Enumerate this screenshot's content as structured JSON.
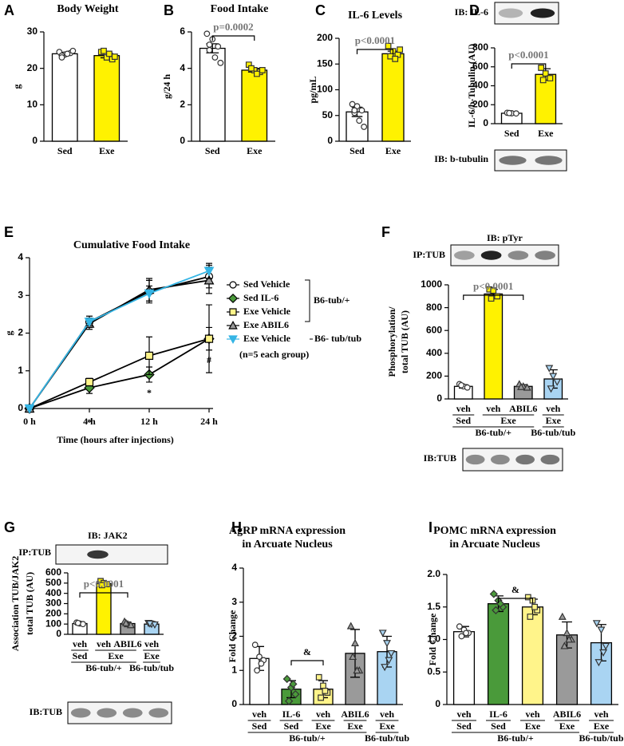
{
  "chart_data": [
    {
      "type": "bar",
      "panel": "A",
      "title": "Body Weight",
      "ylabel": "g",
      "ylim": [
        0,
        30
      ],
      "yticks": [
        0,
        10,
        20,
        30
      ],
      "categories": [
        "Sed",
        "Exe"
      ],
      "values": [
        24,
        23.5
      ],
      "errors": [
        0.4,
        0.6
      ],
      "colors": [
        "#ffffff",
        "#fff200"
      ],
      "markers": [
        "circle",
        "square"
      ],
      "points": [
        [
          24.5,
          23.8,
          24.2,
          23.5,
          24.0,
          24.8,
          23.0
        ],
        [
          24.5,
          23.0,
          22.5,
          24.8,
          24.0,
          23.2
        ]
      ]
    },
    {
      "type": "bar",
      "panel": "B",
      "title": "Food Intake",
      "ylabel": "g/24 h",
      "ylim": [
        0,
        6
      ],
      "yticks": [
        0,
        2,
        4,
        6
      ],
      "categories": [
        "Sed",
        "Exe"
      ],
      "values": [
        5.1,
        3.9
      ],
      "errors": [
        0.25,
        0.1
      ],
      "colors": [
        "#ffffff",
        "#fff200"
      ],
      "markers": [
        "circle",
        "square"
      ],
      "points": [
        [
          5.9,
          5.6,
          5.2,
          5.0,
          4.6,
          4.3,
          5.3
        ],
        [
          4.2,
          3.9,
          3.8,
          4.0,
          3.7,
          3.9
        ]
      ],
      "annotation": "p=0.0002"
    },
    {
      "type": "bar",
      "panel": "C",
      "title": "IL-6 Levels",
      "ylabel": "pg/mL",
      "ylim": [
        0,
        200
      ],
      "yticks": [
        0,
        50,
        100,
        150,
        200
      ],
      "categories": [
        "Sed",
        "Exe"
      ],
      "values": [
        57,
        170
      ],
      "errors": [
        9,
        5
      ],
      "colors": [
        "#ffffff",
        "#fff200"
      ],
      "markers": [
        "circle",
        "square"
      ],
      "points": [
        [
          72,
          68,
          60,
          55,
          40,
          28,
          60
        ],
        [
          185,
          175,
          168,
          165,
          160,
          178
        ]
      ],
      "annotation": "p<0.0001"
    },
    {
      "type": "bar",
      "panel": "D",
      "ylabel": "IL-6/b-Tubulin (AU)",
      "ylim": [
        0,
        800
      ],
      "yticks": [
        0,
        200,
        400,
        600,
        800
      ],
      "categories": [
        "Sed",
        "Exe"
      ],
      "values": [
        110,
        520
      ],
      "errors": [
        5,
        60
      ],
      "colors": [
        "#ffffff",
        "#fff200"
      ],
      "markers": [
        "circle",
        "square"
      ],
      "points": [
        [
          115,
          110,
          108,
          112
        ],
        [
          590,
          530,
          480,
          460
        ]
      ],
      "annotation": "p<0.0001",
      "blot_labels": [
        "IB: IL-6",
        "IB: b-tubulin"
      ]
    },
    {
      "type": "line",
      "panel": "E",
      "title": "Cumulative Food Intake",
      "xlabel": "Time (hours after injections)",
      "ylabel": "g",
      "categories": [
        "0 h",
        "4 h",
        "12 h",
        "24 h"
      ],
      "ylim": [
        0,
        4
      ],
      "yticks": [
        0,
        1,
        2,
        3,
        4
      ],
      "series": [
        {
          "name": "Sed Vehicle",
          "color": "#ffffff",
          "line": "#000000",
          "marker": "circle",
          "values": [
            0,
            2.3,
            3.1,
            3.5
          ],
          "errors": [
            0,
            0.15,
            0.3,
            0.3
          ]
        },
        {
          "name": "Sed IL-6",
          "color": "#4a9a3a",
          "line": "#000000",
          "marker": "diamond",
          "values": [
            0,
            0.55,
            0.9,
            1.85
          ],
          "errors": [
            0,
            0.15,
            0.2,
            0.3
          ]
        },
        {
          "name": "Exe Vehicle",
          "color": "#fff48a",
          "line": "#000000",
          "marker": "square",
          "values": [
            0,
            0.7,
            1.4,
            1.85
          ],
          "errors": [
            0,
            0.1,
            0.5,
            0.9
          ]
        },
        {
          "name": "Exe ABIL6",
          "color": "#9a9a9a",
          "line": "#000000",
          "marker": "triangle",
          "values": [
            0,
            2.25,
            3.15,
            3.4
          ],
          "errors": [
            0,
            0.15,
            0.3,
            0.35
          ]
        },
        {
          "name": "Exe Vehicle",
          "color": "#35b5e5",
          "line": "#35b5e5",
          "marker": "triangle-down",
          "values": [
            0,
            2.3,
            3.05,
            3.65
          ],
          "errors": [
            0,
            0.1,
            0.2,
            0.2
          ]
        }
      ],
      "legend_groups": [
        "B6-tub/+",
        "B6- tub/tub"
      ],
      "note": "(n=5 each group)",
      "annotations": [
        "*",
        "*",
        "#"
      ]
    },
    {
      "type": "bar",
      "panel": "F",
      "ylabel": [
        "Phosphorylation/",
        "total TUB (AU)"
      ],
      "ylim": [
        0,
        1000
      ],
      "yticks": [
        0,
        200,
        400,
        600,
        800,
        1000
      ],
      "categories": [
        "veh",
        "veh",
        "ABIL6",
        "veh"
      ],
      "conditions": [
        "Sed",
        "Exe",
        null,
        "Exe"
      ],
      "strains": [
        "B6-tub/+",
        null,
        null,
        "B6-tub/tub"
      ],
      "values": [
        110,
        920,
        110,
        175
      ],
      "errors": [
        15,
        40,
        15,
        80
      ],
      "colors": [
        "#ffffff",
        "#fff200",
        "#9a9a9a",
        "#a9d4f2"
      ],
      "markers": [
        "circle",
        "square",
        "triangle",
        "triangle-down"
      ],
      "points": [
        [
          130,
          110,
          100,
          120
        ],
        [
          960,
          950,
          900,
          880
        ],
        [
          130,
          110,
          100,
          105
        ],
        [
          270,
          200,
          150,
          90
        ]
      ],
      "annotation": "p<0.0001",
      "blot_labels": [
        "IB: pTyr",
        "IP:TUB",
        "IB:TUB"
      ]
    },
    {
      "type": "bar",
      "panel": "G",
      "ylabel": [
        "Association TUB/JAK2",
        "total TUB (AU)"
      ],
      "ylim": [
        0,
        600
      ],
      "yticks": [
        0,
        100,
        200,
        300,
        400,
        500,
        600
      ],
      "categories": [
        "veh",
        "veh",
        "ABIL6",
        "veh"
      ],
      "conditions": [
        "Sed",
        "Exe",
        null,
        "Exe"
      ],
      "strains": [
        "B6-tub/+",
        null,
        null,
        "B6-tub/tub"
      ],
      "values": [
        105,
        495,
        105,
        100
      ],
      "errors": [
        8,
        15,
        15,
        8
      ],
      "colors": [
        "#ffffff",
        "#fff200",
        "#9a9a9a",
        "#a9d4f2"
      ],
      "markers": [
        "circle",
        "square",
        "triangle",
        "triangle-down"
      ],
      "points": [
        [
          115,
          105,
          100,
          110
        ],
        [
          520,
          500,
          490,
          480
        ],
        [
          125,
          100,
          90,
          110
        ],
        [
          110,
          100,
          95,
          105
        ]
      ],
      "annotation": "p<0.0001",
      "blot_labels": [
        "IB: JAK2",
        "IP:TUB",
        "IB:TUB"
      ]
    },
    {
      "type": "bar",
      "panel": "H",
      "title": [
        "AgRP mRNA expression",
        "in Arcuate Nucleus"
      ],
      "ylabel": "Fold Change",
      "ylim": [
        0,
        4
      ],
      "yticks": [
        0,
        1,
        2,
        3,
        4
      ],
      "categories": [
        "veh",
        "IL-6",
        "veh",
        "ABIL6",
        "veh"
      ],
      "conditions": [
        "Sed",
        "Sed",
        "Exe",
        "Exe",
        "Exe"
      ],
      "strains": [
        "B6-tub/+",
        null,
        null,
        null,
        "B6-tub/tub"
      ],
      "values": [
        1.35,
        0.45,
        0.45,
        1.5,
        1.55
      ],
      "errors": [
        0.35,
        0.25,
        0.25,
        0.7,
        0.45
      ],
      "colors": [
        "#ffffff",
        "#4a9a3a",
        "#fff48a",
        "#9a9a9a",
        "#a9d4f2"
      ],
      "markers": [
        "circle",
        "diamond",
        "square",
        "triangle",
        "triangle-down"
      ],
      "points": [
        [
          1.75,
          1.4,
          1.3,
          1.0,
          1.2
        ],
        [
          0.75,
          0.5,
          0.3,
          0.1,
          0.6
        ],
        [
          0.8,
          0.55,
          0.35,
          0.2,
          0.4
        ],
        [
          2.3,
          1.8,
          1.0,
          1.4,
          1.0
        ],
        [
          2.1,
          1.8,
          1.5,
          1.1,
          1.3
        ]
      ],
      "annotation": "&"
    },
    {
      "type": "bar",
      "panel": "I",
      "title": [
        "POMC mRNA expression",
        "in Arcuate Nucleus"
      ],
      "ylabel": "Fold Change",
      "ylim": [
        0,
        2
      ],
      "yticks": [
        0,
        0.5,
        {
          "value": 1,
          "label": "1.0"
        },
        1.5,
        {
          "value": 2,
          "label": "2.0"
        }
      ],
      "categories": [
        "veh",
        "IL-6",
        "veh",
        "ABIL6",
        "veh"
      ],
      "conditions": [
        "Sed",
        "Sed",
        "Exe",
        "Exe",
        "Exe"
      ],
      "strains": [
        "B6-tub/+",
        null,
        null,
        null,
        "B6-tub/tub"
      ],
      "values": [
        1.12,
        1.55,
        1.5,
        1.07,
        0.95
      ],
      "errors": [
        0.08,
        0.12,
        0.12,
        0.2,
        0.28
      ],
      "colors": [
        "#ffffff",
        "#4a9a3a",
        "#fff48a",
        "#9a9a9a",
        "#a9d4f2"
      ],
      "markers": [
        "circle",
        "diamond",
        "square",
        "triangle",
        "triangle-down"
      ],
      "points": [
        [
          1.2,
          1.15,
          1.1,
          1.05,
          1.1
        ],
        [
          1.7,
          1.6,
          1.5,
          1.45,
          1.55
        ],
        [
          1.65,
          1.6,
          1.45,
          1.35,
          1.5
        ],
        [
          1.35,
          1.1,
          1.0,
          0.9,
          1.0
        ],
        [
          1.25,
          1.15,
          0.9,
          0.65,
          0.8
        ]
      ],
      "annotation": "&"
    }
  ]
}
